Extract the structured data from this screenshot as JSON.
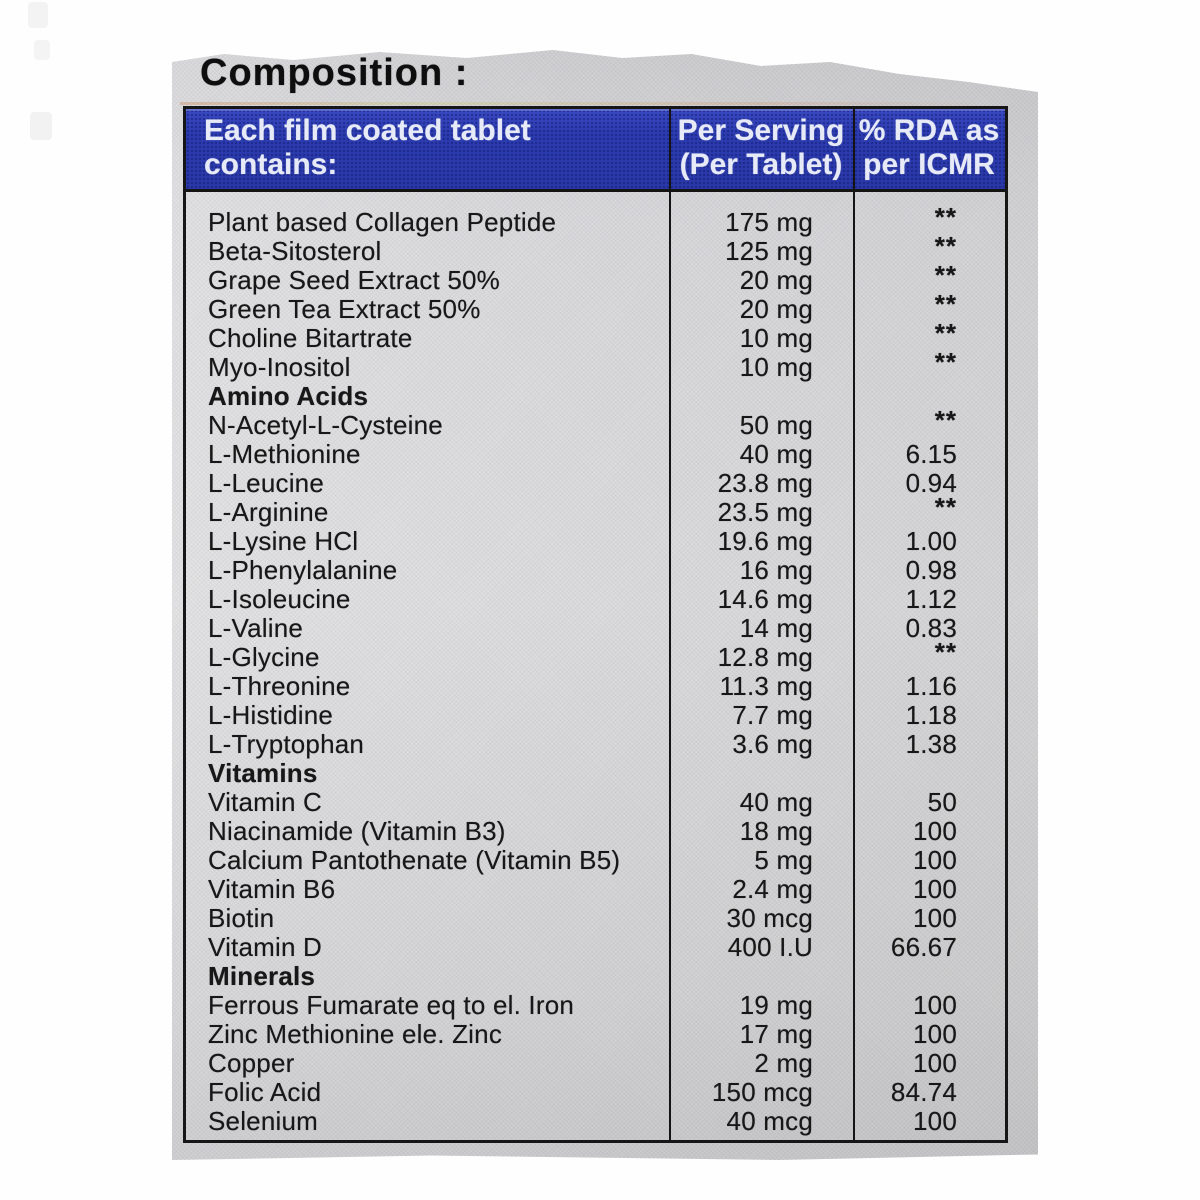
{
  "page": {
    "title": "Composition :"
  },
  "colors": {
    "header_bg": "#2c3cb2",
    "header_text": "#e9ecf9",
    "label_bg": "#dbdbde",
    "border": "#161616",
    "text": "#171717"
  },
  "table": {
    "header": {
      "col1_lines": [
        "Each film coated tablet",
        "contains:"
      ],
      "col2_lines": [
        "Per Serving",
        "(Per Tablet)"
      ],
      "col3_lines": [
        "% RDA as",
        "per ICMR"
      ]
    },
    "rows": [
      {
        "name": "Plant based Collagen Peptide",
        "amount": "175 mg",
        "rda": "**",
        "section": false
      },
      {
        "name": "Beta-Sitosterol",
        "amount": "125 mg",
        "rda": "**",
        "section": false
      },
      {
        "name": "Grape Seed Extract 50%",
        "amount": "20 mg",
        "rda": "**",
        "section": false
      },
      {
        "name": "Green Tea Extract 50%",
        "amount": "20 mg",
        "rda": "**",
        "section": false
      },
      {
        "name": "Choline Bitartrate",
        "amount": "10 mg",
        "rda": "**",
        "section": false
      },
      {
        "name": "Myo-Inositol",
        "amount": "10 mg",
        "rda": "**",
        "section": false
      },
      {
        "name": "Amino Acids",
        "amount": "",
        "rda": "",
        "section": true
      },
      {
        "name": "N-Acetyl-L-Cysteine",
        "amount": "50 mg",
        "rda": "**",
        "section": false
      },
      {
        "name": "L-Methionine",
        "amount": "40 mg",
        "rda": "6.15",
        "section": false
      },
      {
        "name": "L-Leucine",
        "amount": "23.8 mg",
        "rda": "0.94",
        "section": false
      },
      {
        "name": "L-Arginine",
        "amount": "23.5 mg",
        "rda": "**",
        "section": false
      },
      {
        "name": "L-Lysine HCl",
        "amount": "19.6 mg",
        "rda": "1.00",
        "section": false
      },
      {
        "name": "L-Phenylalanine",
        "amount": "16 mg",
        "rda": "0.98",
        "section": false
      },
      {
        "name": "L-Isoleucine",
        "amount": "14.6 mg",
        "rda": "1.12",
        "section": false
      },
      {
        "name": "L-Valine",
        "amount": "14 mg",
        "rda": "0.83",
        "section": false
      },
      {
        "name": "L-Glycine",
        "amount": "12.8 mg",
        "rda": "**",
        "section": false
      },
      {
        "name": "L-Threonine",
        "amount": "11.3 mg",
        "rda": "1.16",
        "section": false
      },
      {
        "name": "L-Histidine",
        "amount": "7.7 mg",
        "rda": "1.18",
        "section": false
      },
      {
        "name": "L-Tryptophan",
        "amount": "3.6 mg",
        "rda": "1.38",
        "section": false
      },
      {
        "name": "Vitamins",
        "amount": "",
        "rda": "",
        "section": true
      },
      {
        "name": "Vitamin C",
        "amount": "40 mg",
        "rda": "50",
        "section": false
      },
      {
        "name": "Niacinamide (Vitamin B3)",
        "amount": "18 mg",
        "rda": "100",
        "section": false
      },
      {
        "name": "Calcium Pantothenate (Vitamin B5)",
        "amount": "5 mg",
        "rda": "100",
        "section": false
      },
      {
        "name": "Vitamin B6",
        "amount": "2.4 mg",
        "rda": "100",
        "section": false
      },
      {
        "name": "Biotin",
        "amount": "30 mcg",
        "rda": "100",
        "section": false
      },
      {
        "name": "Vitamin D",
        "amount": "400 I.U",
        "rda": "66.67",
        "section": false
      },
      {
        "name": "Minerals",
        "amount": "",
        "rda": "",
        "section": true
      },
      {
        "name": "Ferrous Fumarate eq to el. Iron",
        "amount": "19 mg",
        "rda": "100",
        "section": false
      },
      {
        "name": "Zinc Methionine ele. Zinc",
        "amount": "17 mg",
        "rda": "100",
        "section": false
      },
      {
        "name": "Copper",
        "amount": "2 mg",
        "rda": "100",
        "section": false
      },
      {
        "name": "Folic Acid",
        "amount": "150 mcg",
        "rda": "84.74",
        "section": false
      },
      {
        "name": "Selenium",
        "amount": "40 mcg",
        "rda": "100",
        "section": false
      }
    ]
  }
}
